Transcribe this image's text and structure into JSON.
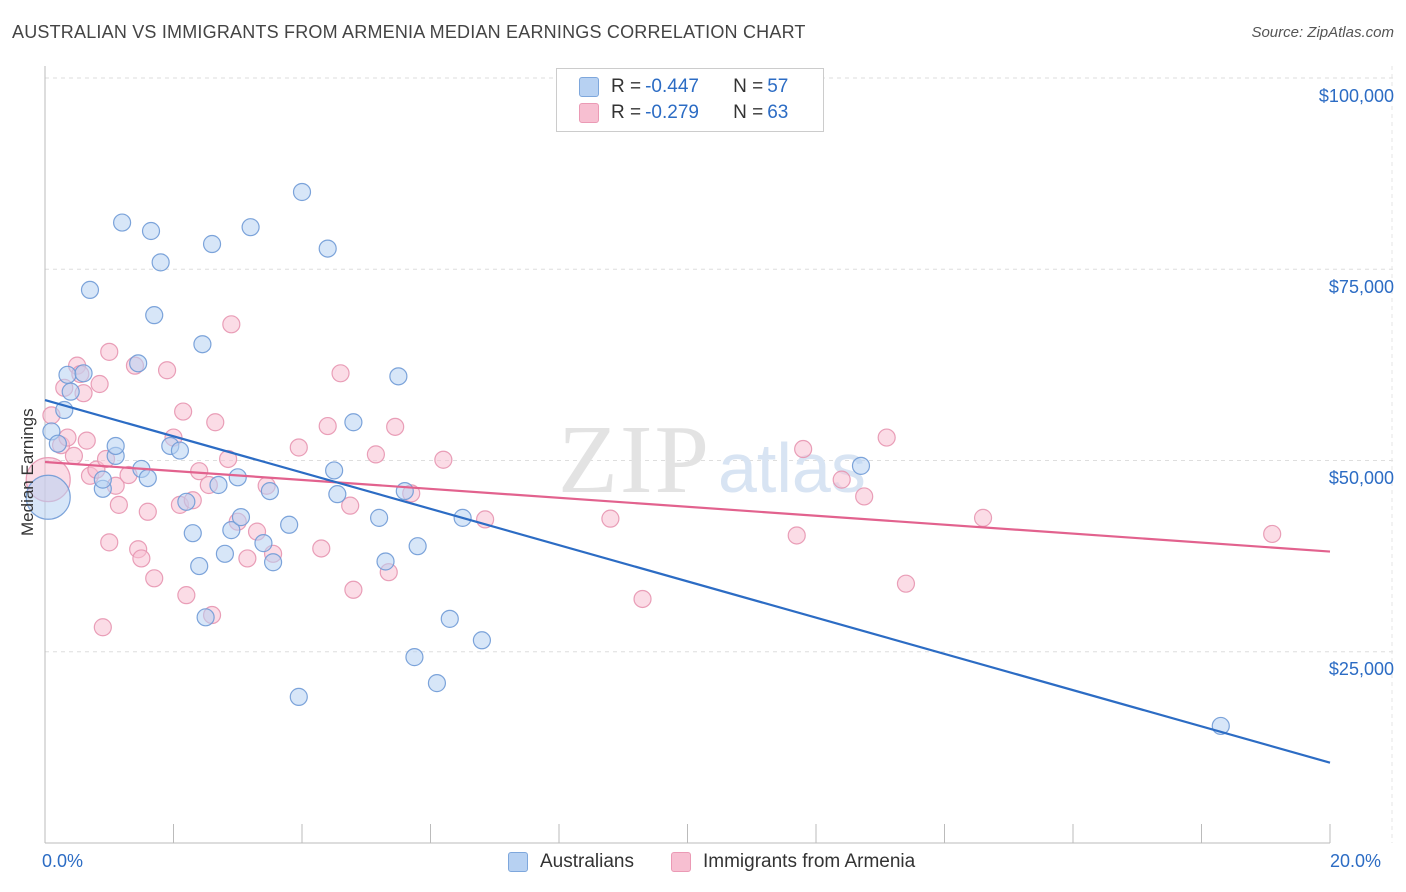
{
  "title": "AUSTRALIAN VS IMMIGRANTS FROM ARMENIA MEDIAN EARNINGS CORRELATION CHART",
  "source": "Source: ZipAtlas.com",
  "watermark": {
    "zip": "ZIP",
    "atlas": "atlas"
  },
  "colors": {
    "blue": "#2c6cc4",
    "blue_fill": "#b7d1f2",
    "pink": "#e2628e",
    "pink_fill": "#f7bfd1"
  },
  "legend": {
    "rows": [
      {
        "r_label": "R = ",
        "r_value": "-0.447",
        "n_label": "N = ",
        "n_value": "57"
      },
      {
        "r_label": "R = ",
        "r_value": "-0.279",
        "n_label": "N = ",
        "n_value": "63"
      }
    ]
  },
  "chart_data": {
    "type": "scatter",
    "title": "AUSTRALIAN VS IMMIGRANTS FROM ARMENIA MEDIAN EARNINGS CORRELATION CHART",
    "xlabel": "",
    "ylabel": "Median Earnings",
    "xlim": [
      0,
      20
    ],
    "ylim": [
      0,
      105000
    ],
    "x_tick_labels": [
      "0.0%",
      "20.0%"
    ],
    "y_ticks": [
      25000,
      50000,
      75000,
      100000
    ],
    "y_tick_labels": [
      "$25,000",
      "$50,000",
      "$75,000",
      "$100,000"
    ],
    "grid": true,
    "series": [
      {
        "name": "Australians",
        "color": "#2c6cc4",
        "trend": {
          "x": [
            0,
            20
          ],
          "y": [
            57900,
            10500
          ]
        },
        "points": [
          [
            0.05,
            45200,
            "big"
          ],
          [
            0.1,
            53800
          ],
          [
            0.2,
            52200
          ],
          [
            0.3,
            56600
          ],
          [
            0.4,
            59000
          ],
          [
            0.35,
            61200
          ],
          [
            0.6,
            61400
          ],
          [
            0.7,
            72300
          ],
          [
            0.9,
            46300
          ],
          [
            0.9,
            47500
          ],
          [
            1.1,
            50600
          ],
          [
            1.1,
            51900
          ],
          [
            1.2,
            81100
          ],
          [
            1.45,
            62700
          ],
          [
            1.5,
            48900
          ],
          [
            1.6,
            47700
          ],
          [
            1.65,
            80000
          ],
          [
            1.7,
            69000
          ],
          [
            1.8,
            75900
          ],
          [
            1.95,
            51900
          ],
          [
            2.1,
            51300
          ],
          [
            2.2,
            44600
          ],
          [
            2.3,
            40500
          ],
          [
            2.4,
            36200
          ],
          [
            2.45,
            65200
          ],
          [
            2.5,
            29500
          ],
          [
            2.6,
            78300
          ],
          [
            2.7,
            46800
          ],
          [
            2.8,
            37800
          ],
          [
            2.9,
            40900
          ],
          [
            3.0,
            47800
          ],
          [
            3.05,
            42600
          ],
          [
            3.2,
            80500
          ],
          [
            3.4,
            39200
          ],
          [
            3.5,
            46000
          ],
          [
            3.55,
            36700
          ],
          [
            3.8,
            41600
          ],
          [
            3.95,
            19100
          ],
          [
            4.0,
            85100
          ],
          [
            4.4,
            77700
          ],
          [
            4.5,
            48700
          ],
          [
            4.55,
            45600
          ],
          [
            4.8,
            55000
          ],
          [
            5.2,
            42500
          ],
          [
            5.3,
            36800
          ],
          [
            5.5,
            61000
          ],
          [
            5.6,
            46000
          ],
          [
            5.75,
            24300
          ],
          [
            5.8,
            38800
          ],
          [
            6.1,
            20900
          ],
          [
            6.3,
            29300
          ],
          [
            6.5,
            42500
          ],
          [
            6.8,
            26500
          ],
          [
            12.7,
            49300
          ],
          [
            18.3,
            15300
          ]
        ]
      },
      {
        "name": "Immigrants from Armenia",
        "color": "#e2628e",
        "trend": {
          "x": [
            0,
            20
          ],
          "y": [
            49800,
            38100
          ]
        },
        "points": [
          [
            0.05,
            47500,
            "big"
          ],
          [
            0.1,
            55900
          ],
          [
            0.25,
            52000
          ],
          [
            0.3,
            59500
          ],
          [
            0.35,
            53000
          ],
          [
            0.45,
            50600
          ],
          [
            0.5,
            62400
          ],
          [
            0.55,
            61300
          ],
          [
            0.6,
            58800
          ],
          [
            0.65,
            52600
          ],
          [
            0.7,
            48000
          ],
          [
            0.8,
            48800
          ],
          [
            0.85,
            60000
          ],
          [
            0.9,
            28200
          ],
          [
            0.95,
            50200
          ],
          [
            1.0,
            64200
          ],
          [
            1.0,
            39300
          ],
          [
            1.1,
            46700
          ],
          [
            1.15,
            44200
          ],
          [
            1.3,
            48100
          ],
          [
            1.4,
            62400
          ],
          [
            1.45,
            38400
          ],
          [
            1.5,
            37200
          ],
          [
            1.6,
            43300
          ],
          [
            1.7,
            34600
          ],
          [
            1.9,
            61800
          ],
          [
            2.0,
            53000
          ],
          [
            2.1,
            44200
          ],
          [
            2.15,
            56400
          ],
          [
            2.2,
            32400
          ],
          [
            2.3,
            44800
          ],
          [
            2.4,
            48600
          ],
          [
            2.55,
            46800
          ],
          [
            2.6,
            29800
          ],
          [
            2.65,
            55000
          ],
          [
            2.85,
            50200
          ],
          [
            2.9,
            67800
          ],
          [
            3.0,
            42000
          ],
          [
            3.15,
            37200
          ],
          [
            3.3,
            40700
          ],
          [
            3.45,
            46700
          ],
          [
            3.55,
            37800
          ],
          [
            3.95,
            51700
          ],
          [
            4.3,
            38500
          ],
          [
            4.4,
            54500
          ],
          [
            4.6,
            61400
          ],
          [
            4.75,
            44100
          ],
          [
            4.8,
            33100
          ],
          [
            5.15,
            50800
          ],
          [
            5.35,
            35400
          ],
          [
            5.45,
            54400
          ],
          [
            5.7,
            45700
          ],
          [
            6.2,
            50100
          ],
          [
            6.85,
            42300
          ],
          [
            8.8,
            42400
          ],
          [
            9.3,
            31900
          ],
          [
            11.7,
            40200
          ],
          [
            11.8,
            51500
          ],
          [
            12.4,
            47500
          ],
          [
            12.75,
            45300
          ],
          [
            13.1,
            53000
          ],
          [
            13.4,
            33900
          ],
          [
            14.6,
            42500
          ],
          [
            19.1,
            40400
          ]
        ]
      }
    ]
  }
}
